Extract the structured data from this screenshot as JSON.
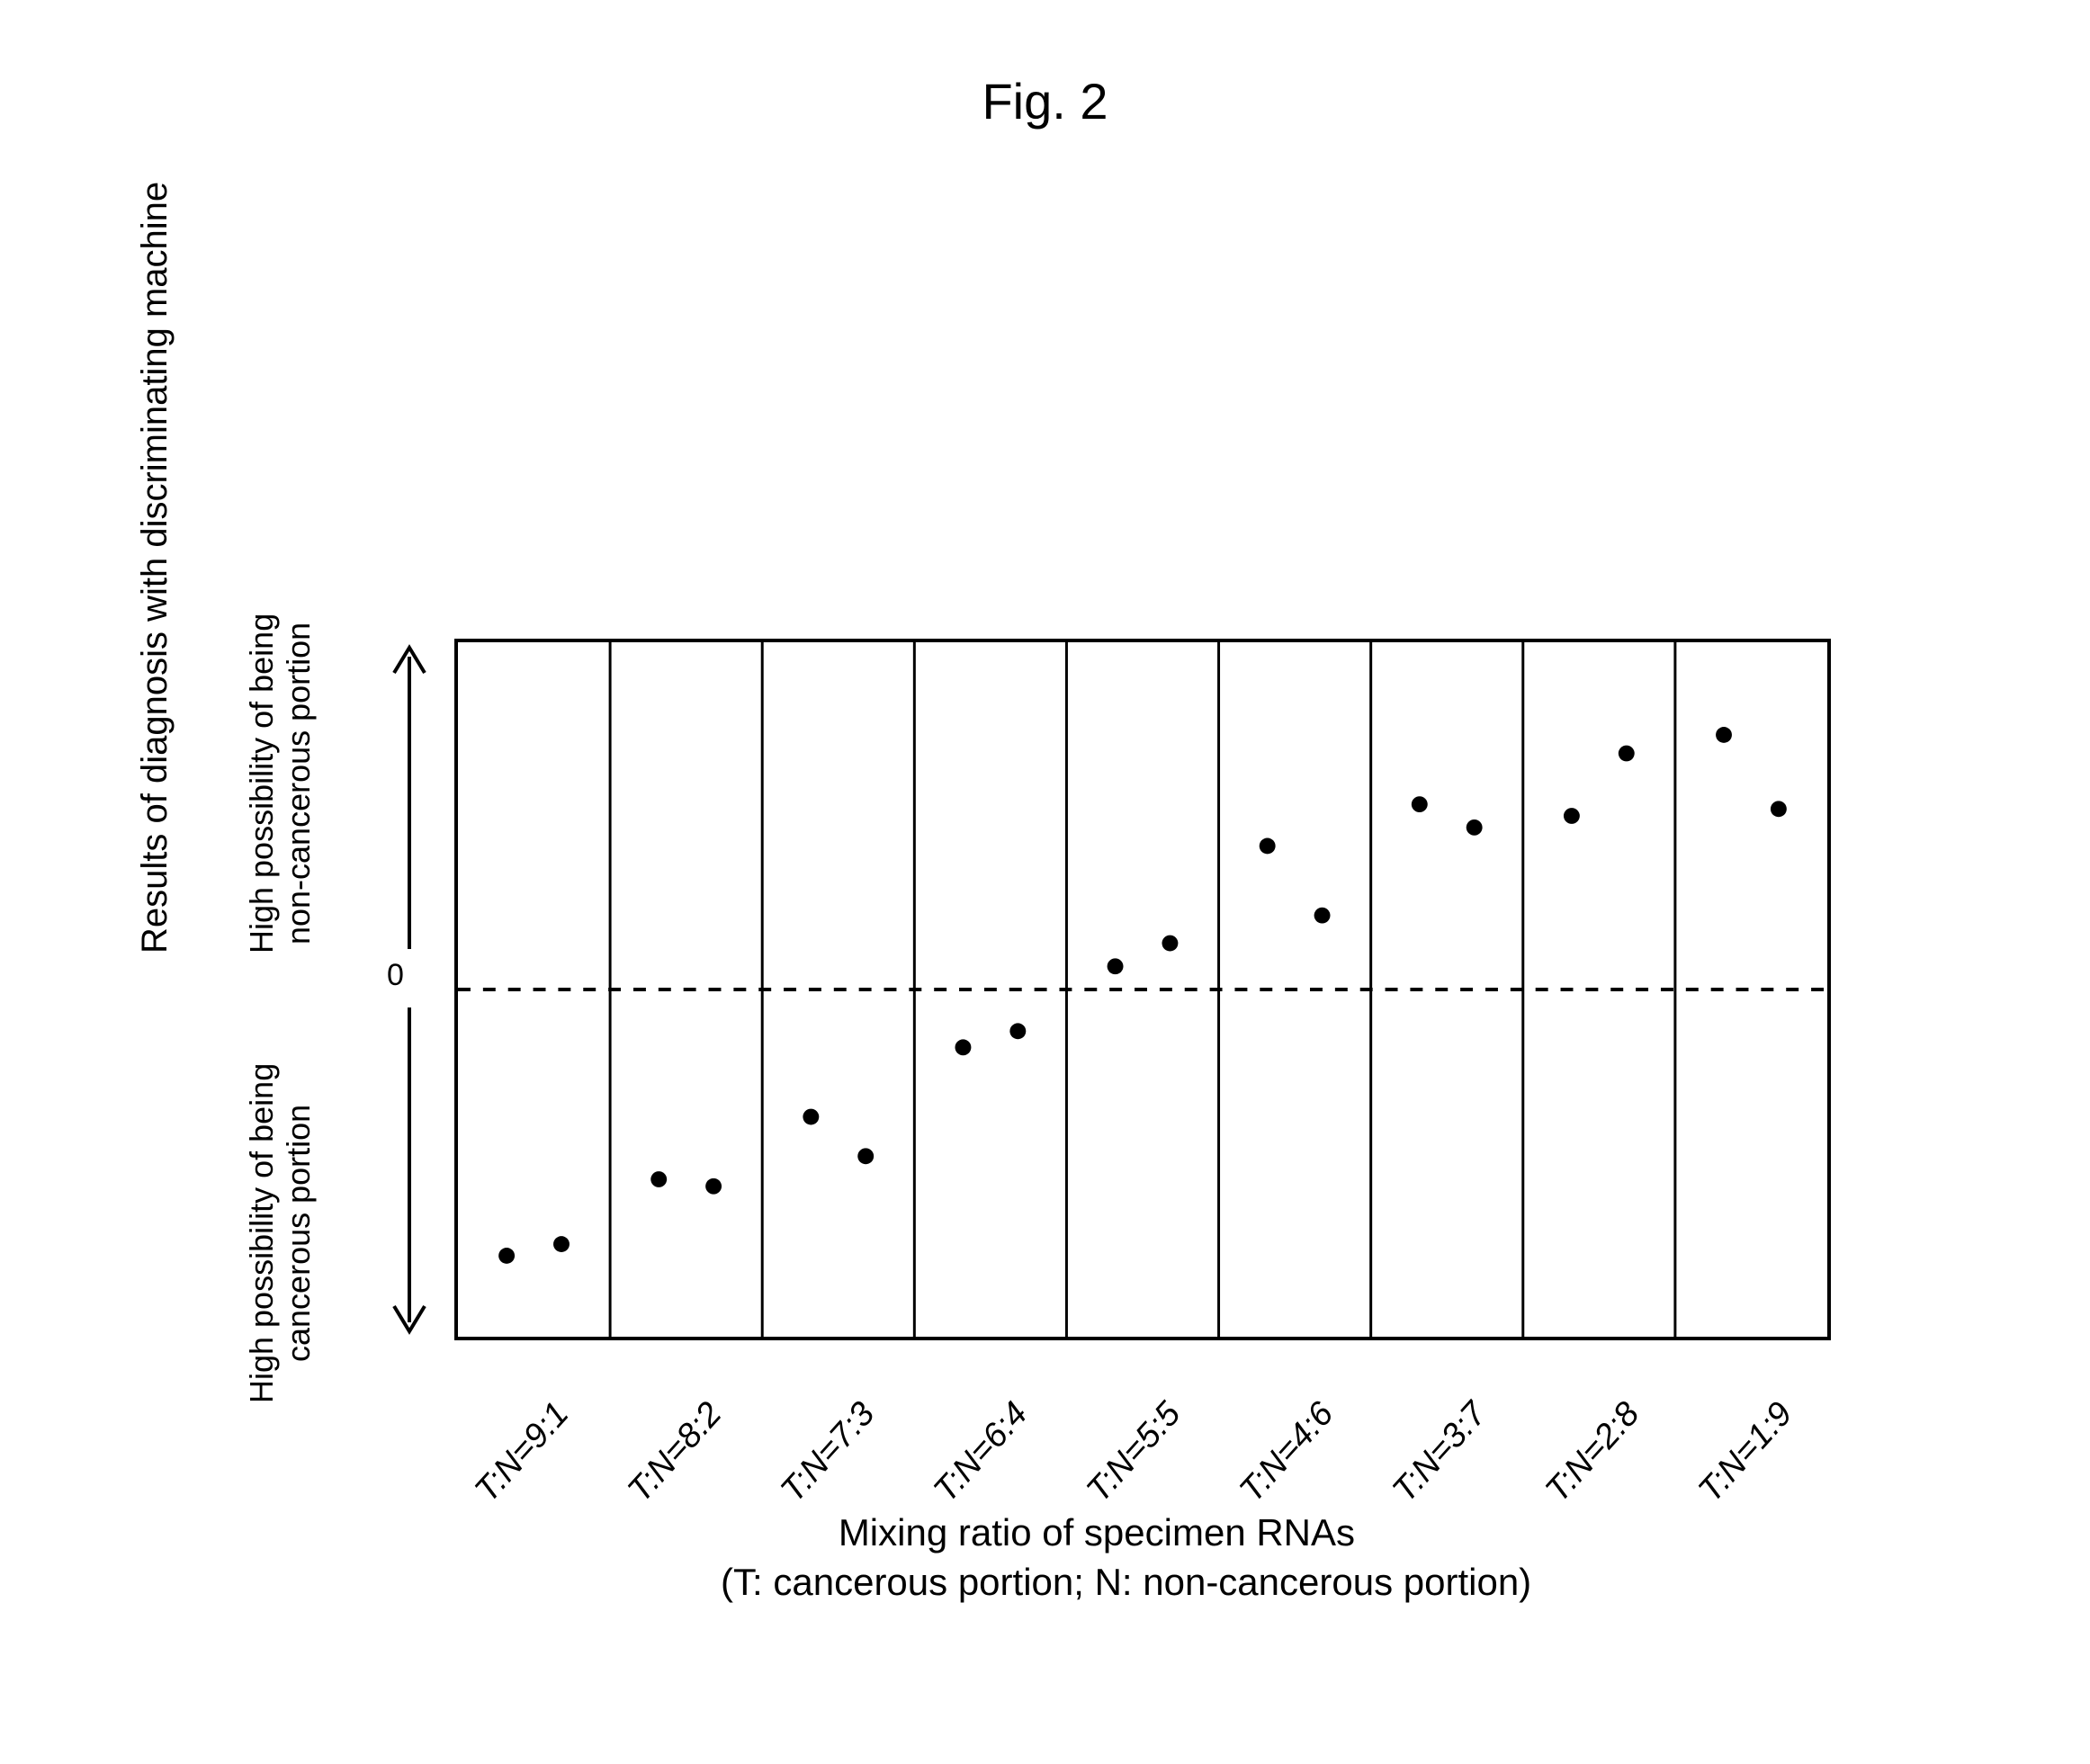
{
  "figure": {
    "title": "Fig. 2",
    "title_fontsize": 56,
    "title_color": "#000000"
  },
  "chart": {
    "type": "scatter",
    "background_color": "#ffffff",
    "border_color": "#000000",
    "border_width": 4,
    "aspect_width": 1530,
    "aspect_height": 780,
    "y_outer_title": "Results of diagnosis with discriminating machine",
    "y_inner_top_label": "High possibility of being\nnon-cancerous portion",
    "y_inner_bottom_label": "High possibility of being\ncancerous portion",
    "y_zero_label": "0",
    "y_label_fontsize": 36,
    "y_outer_fontsize": 40,
    "axis_arrow_color": "#000000",
    "axis_arrow_stroke": 4,
    "x_title": "Mixing ratio of specimen RNAs",
    "x_subtitle": "(T: cancerous portion; N: non-cancerous portion)",
    "x_title_fontsize": 42,
    "xtick_fontsize": 38,
    "xtick_rotation_deg": -48,
    "categories": [
      "T:N=9:1",
      "T:N=8:2",
      "T:N=7:3",
      "T:N=6:4",
      "T:N=5:5",
      "T:N=4:6",
      "T:N=3:7",
      "T:N=2:8",
      "T:N=1:9"
    ],
    "ylim": [
      -1.5,
      1.5
    ],
    "zero_line": {
      "value": 0,
      "style": "dashed",
      "color": "#000000",
      "dash": "14,14",
      "width": 4
    },
    "gridlines_x": {
      "color": "#000000",
      "width": 3
    },
    "marker": {
      "shape": "circle",
      "radius": 9,
      "fill": "#000000"
    },
    "series": [
      {
        "name": "sample-a",
        "points": [
          {
            "cat": 0,
            "x_off": -0.18,
            "y": -1.15
          },
          {
            "cat": 1,
            "x_off": -0.18,
            "y": -0.82
          },
          {
            "cat": 2,
            "x_off": -0.18,
            "y": -0.55
          },
          {
            "cat": 3,
            "x_off": -0.18,
            "y": -0.25
          },
          {
            "cat": 4,
            "x_off": -0.18,
            "y": 0.1
          },
          {
            "cat": 5,
            "x_off": -0.18,
            "y": 0.62
          },
          {
            "cat": 6,
            "x_off": -0.18,
            "y": 0.8
          },
          {
            "cat": 7,
            "x_off": -0.18,
            "y": 0.75
          },
          {
            "cat": 8,
            "x_off": -0.18,
            "y": 1.1
          }
        ]
      },
      {
        "name": "sample-b",
        "points": [
          {
            "cat": 0,
            "x_off": 0.18,
            "y": -1.1
          },
          {
            "cat": 1,
            "x_off": 0.18,
            "y": -0.85
          },
          {
            "cat": 2,
            "x_off": 0.18,
            "y": -0.72
          },
          {
            "cat": 3,
            "x_off": 0.18,
            "y": -0.18
          },
          {
            "cat": 4,
            "x_off": 0.18,
            "y": 0.2
          },
          {
            "cat": 5,
            "x_off": 0.18,
            "y": 0.32
          },
          {
            "cat": 6,
            "x_off": 0.18,
            "y": 0.7
          },
          {
            "cat": 7,
            "x_off": 0.18,
            "y": 1.02
          },
          {
            "cat": 8,
            "x_off": 0.18,
            "y": 0.78
          }
        ]
      }
    ]
  }
}
